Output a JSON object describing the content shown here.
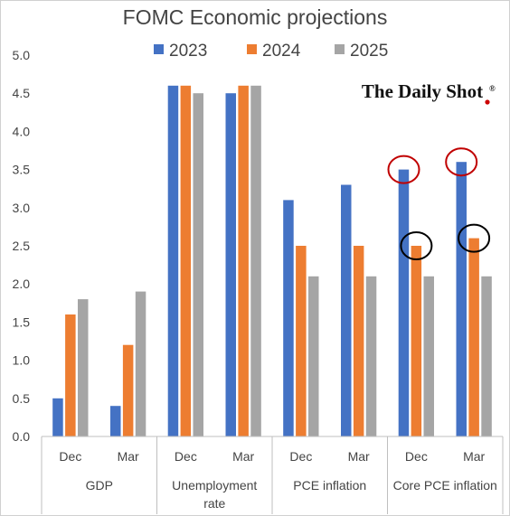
{
  "chart_data": {
    "type": "bar",
    "title": "FOMC Economic projections",
    "watermark": "The Daily Shot",
    "watermark_mark": "®",
    "ylim": [
      0,
      5.0
    ],
    "yticks": [
      "0.0",
      "0.5",
      "1.0",
      "1.5",
      "2.0",
      "2.5",
      "3.0",
      "3.5",
      "4.0",
      "4.5",
      "5.0"
    ],
    "grid": false,
    "legend_position": "top",
    "groups": [
      {
        "label": "GDP",
        "label_lines": [
          "GDP"
        ],
        "categories": [
          "Dec",
          "Mar"
        ]
      },
      {
        "label": "Unemployment rate",
        "label_lines": [
          "Unemployment",
          "rate"
        ],
        "categories": [
          "Dec",
          "Mar"
        ]
      },
      {
        "label": "PCE inflation",
        "label_lines": [
          "PCE inflation"
        ],
        "categories": [
          "Dec",
          "Mar"
        ]
      },
      {
        "label": "Core PCE inflation",
        "label_lines": [
          "Core PCE inflation"
        ],
        "categories": [
          "Dec",
          "Mar"
        ]
      }
    ],
    "series": [
      {
        "name": "2023",
        "color": "#4472C4",
        "values": [
          0.5,
          0.4,
          4.6,
          4.5,
          3.1,
          3.3,
          3.5,
          3.6
        ]
      },
      {
        "name": "2024",
        "color": "#ED7D31",
        "values": [
          1.6,
          1.2,
          4.6,
          4.6,
          2.5,
          2.5,
          2.5,
          2.6
        ]
      },
      {
        "name": "2025",
        "color": "#A5A5A5",
        "values": [
          1.8,
          1.9,
          4.5,
          4.6,
          2.1,
          2.1,
          2.1,
          2.1
        ]
      }
    ],
    "highlights": [
      {
        "series": 0,
        "index": 6,
        "color": "#C00000"
      },
      {
        "series": 0,
        "index": 7,
        "color": "#C00000"
      },
      {
        "series": 1,
        "index": 6,
        "color": "#000000"
      },
      {
        "series": 1,
        "index": 7,
        "color": "#000000"
      }
    ]
  }
}
